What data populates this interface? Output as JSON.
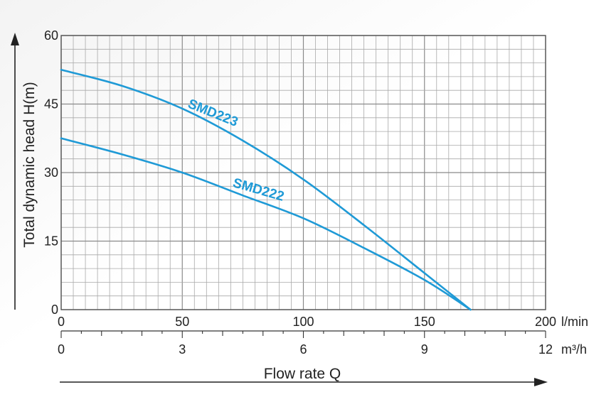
{
  "chart_data": {
    "type": "line",
    "xlabel": "Flow rate Q",
    "ylabel": "Total dynamic head H(m)",
    "xlim": [
      0,
      200
    ],
    "ylim": [
      0,
      60
    ],
    "x_unit": "l/min",
    "x_ticks": [
      0,
      50,
      100,
      150,
      200
    ],
    "y_ticks": [
      0,
      15,
      30,
      45,
      60
    ],
    "secondary_x_axis": {
      "unit": "m³/h",
      "ticks": [
        0,
        3,
        6,
        9,
        12
      ]
    },
    "grid": true,
    "line_color": "#1f9ad6",
    "series": [
      {
        "name": "SMD223",
        "x": [
          0,
          25,
          50,
          75,
          100,
          125,
          150,
          169
        ],
        "y": [
          52.5,
          49,
          44,
          37,
          28.5,
          18.5,
          8,
          0
        ]
      },
      {
        "name": "SMD222",
        "x": [
          0,
          25,
          50,
          75,
          100,
          125,
          150,
          169
        ],
        "y": [
          37.5,
          34,
          30,
          25,
          20,
          13.5,
          6.5,
          0
        ]
      }
    ]
  }
}
